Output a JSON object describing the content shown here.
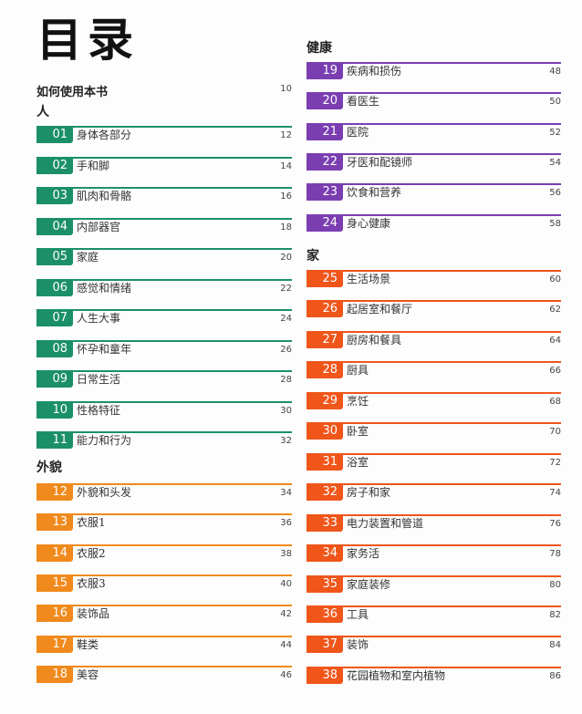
{
  "page": {
    "title": "目录",
    "intro": {
      "label": "如何使用本书",
      "page": "10"
    }
  },
  "colors": {
    "people": "#1b9068",
    "appearance": "#f08a1c",
    "health": "#7a3eb1",
    "home": "#f0551a"
  },
  "sections": [
    {
      "name": "人",
      "color": "#1b9068",
      "items": [
        {
          "num": "01",
          "label": "身体各部分",
          "page": "12"
        },
        {
          "num": "02",
          "label": "手和脚",
          "page": "14"
        },
        {
          "num": "03",
          "label": "肌肉和骨骼",
          "page": "16"
        },
        {
          "num": "04",
          "label": "内部器官",
          "page": "18"
        },
        {
          "num": "05",
          "label": "家庭",
          "page": "20"
        },
        {
          "num": "06",
          "label": "感觉和情绪",
          "page": "22"
        },
        {
          "num": "07",
          "label": "人生大事",
          "page": "24"
        },
        {
          "num": "08",
          "label": "怀孕和童年",
          "page": "26"
        },
        {
          "num": "09",
          "label": "日常生活",
          "page": "28"
        },
        {
          "num": "10",
          "label": "性格特征",
          "page": "30"
        },
        {
          "num": "11",
          "label": "能力和行为",
          "page": "32"
        }
      ]
    },
    {
      "name": "外貌",
      "color": "#f08a1c",
      "items": [
        {
          "num": "12",
          "label": "外貌和头发",
          "page": "34"
        },
        {
          "num": "13",
          "label": "衣服1",
          "page": "36"
        },
        {
          "num": "14",
          "label": "衣服2",
          "page": "38"
        },
        {
          "num": "15",
          "label": "衣服3",
          "page": "40"
        },
        {
          "num": "16",
          "label": "装饰品",
          "page": "42"
        },
        {
          "num": "17",
          "label": "鞋类",
          "page": "44"
        },
        {
          "num": "18",
          "label": "美容",
          "page": "46"
        }
      ]
    },
    {
      "name": "健康",
      "color": "#7a3eb1",
      "items": [
        {
          "num": "19",
          "label": "疾病和损伤",
          "page": "48"
        },
        {
          "num": "20",
          "label": "看医生",
          "page": "50"
        },
        {
          "num": "21",
          "label": "医院",
          "page": "52"
        },
        {
          "num": "22",
          "label": "牙医和配镜师",
          "page": "54"
        },
        {
          "num": "23",
          "label": "饮食和营养",
          "page": "56"
        },
        {
          "num": "24",
          "label": "身心健康",
          "page": "58"
        }
      ]
    },
    {
      "name": "家",
      "color": "#f0551a",
      "items": [
        {
          "num": "25",
          "label": "生活场景",
          "page": "60"
        },
        {
          "num": "26",
          "label": "起居室和餐厅",
          "page": "62"
        },
        {
          "num": "27",
          "label": "厨房和餐具",
          "page": "64"
        },
        {
          "num": "28",
          "label": "厨具",
          "page": "66"
        },
        {
          "num": "29",
          "label": "烹饪",
          "page": "68"
        },
        {
          "num": "30",
          "label": "卧室",
          "page": "70"
        },
        {
          "num": "31",
          "label": "浴室",
          "page": "72"
        },
        {
          "num": "32",
          "label": "房子和家",
          "page": "74"
        },
        {
          "num": "33",
          "label": "电力装置和管道",
          "page": "76"
        },
        {
          "num": "34",
          "label": "家务活",
          "page": "78"
        },
        {
          "num": "35",
          "label": "家庭装修",
          "page": "80"
        },
        {
          "num": "36",
          "label": "工具",
          "page": "82"
        },
        {
          "num": "37",
          "label": "装饰",
          "page": "84"
        },
        {
          "num": "38",
          "label": "花园植物和室内植物",
          "page": "86"
        }
      ]
    }
  ]
}
